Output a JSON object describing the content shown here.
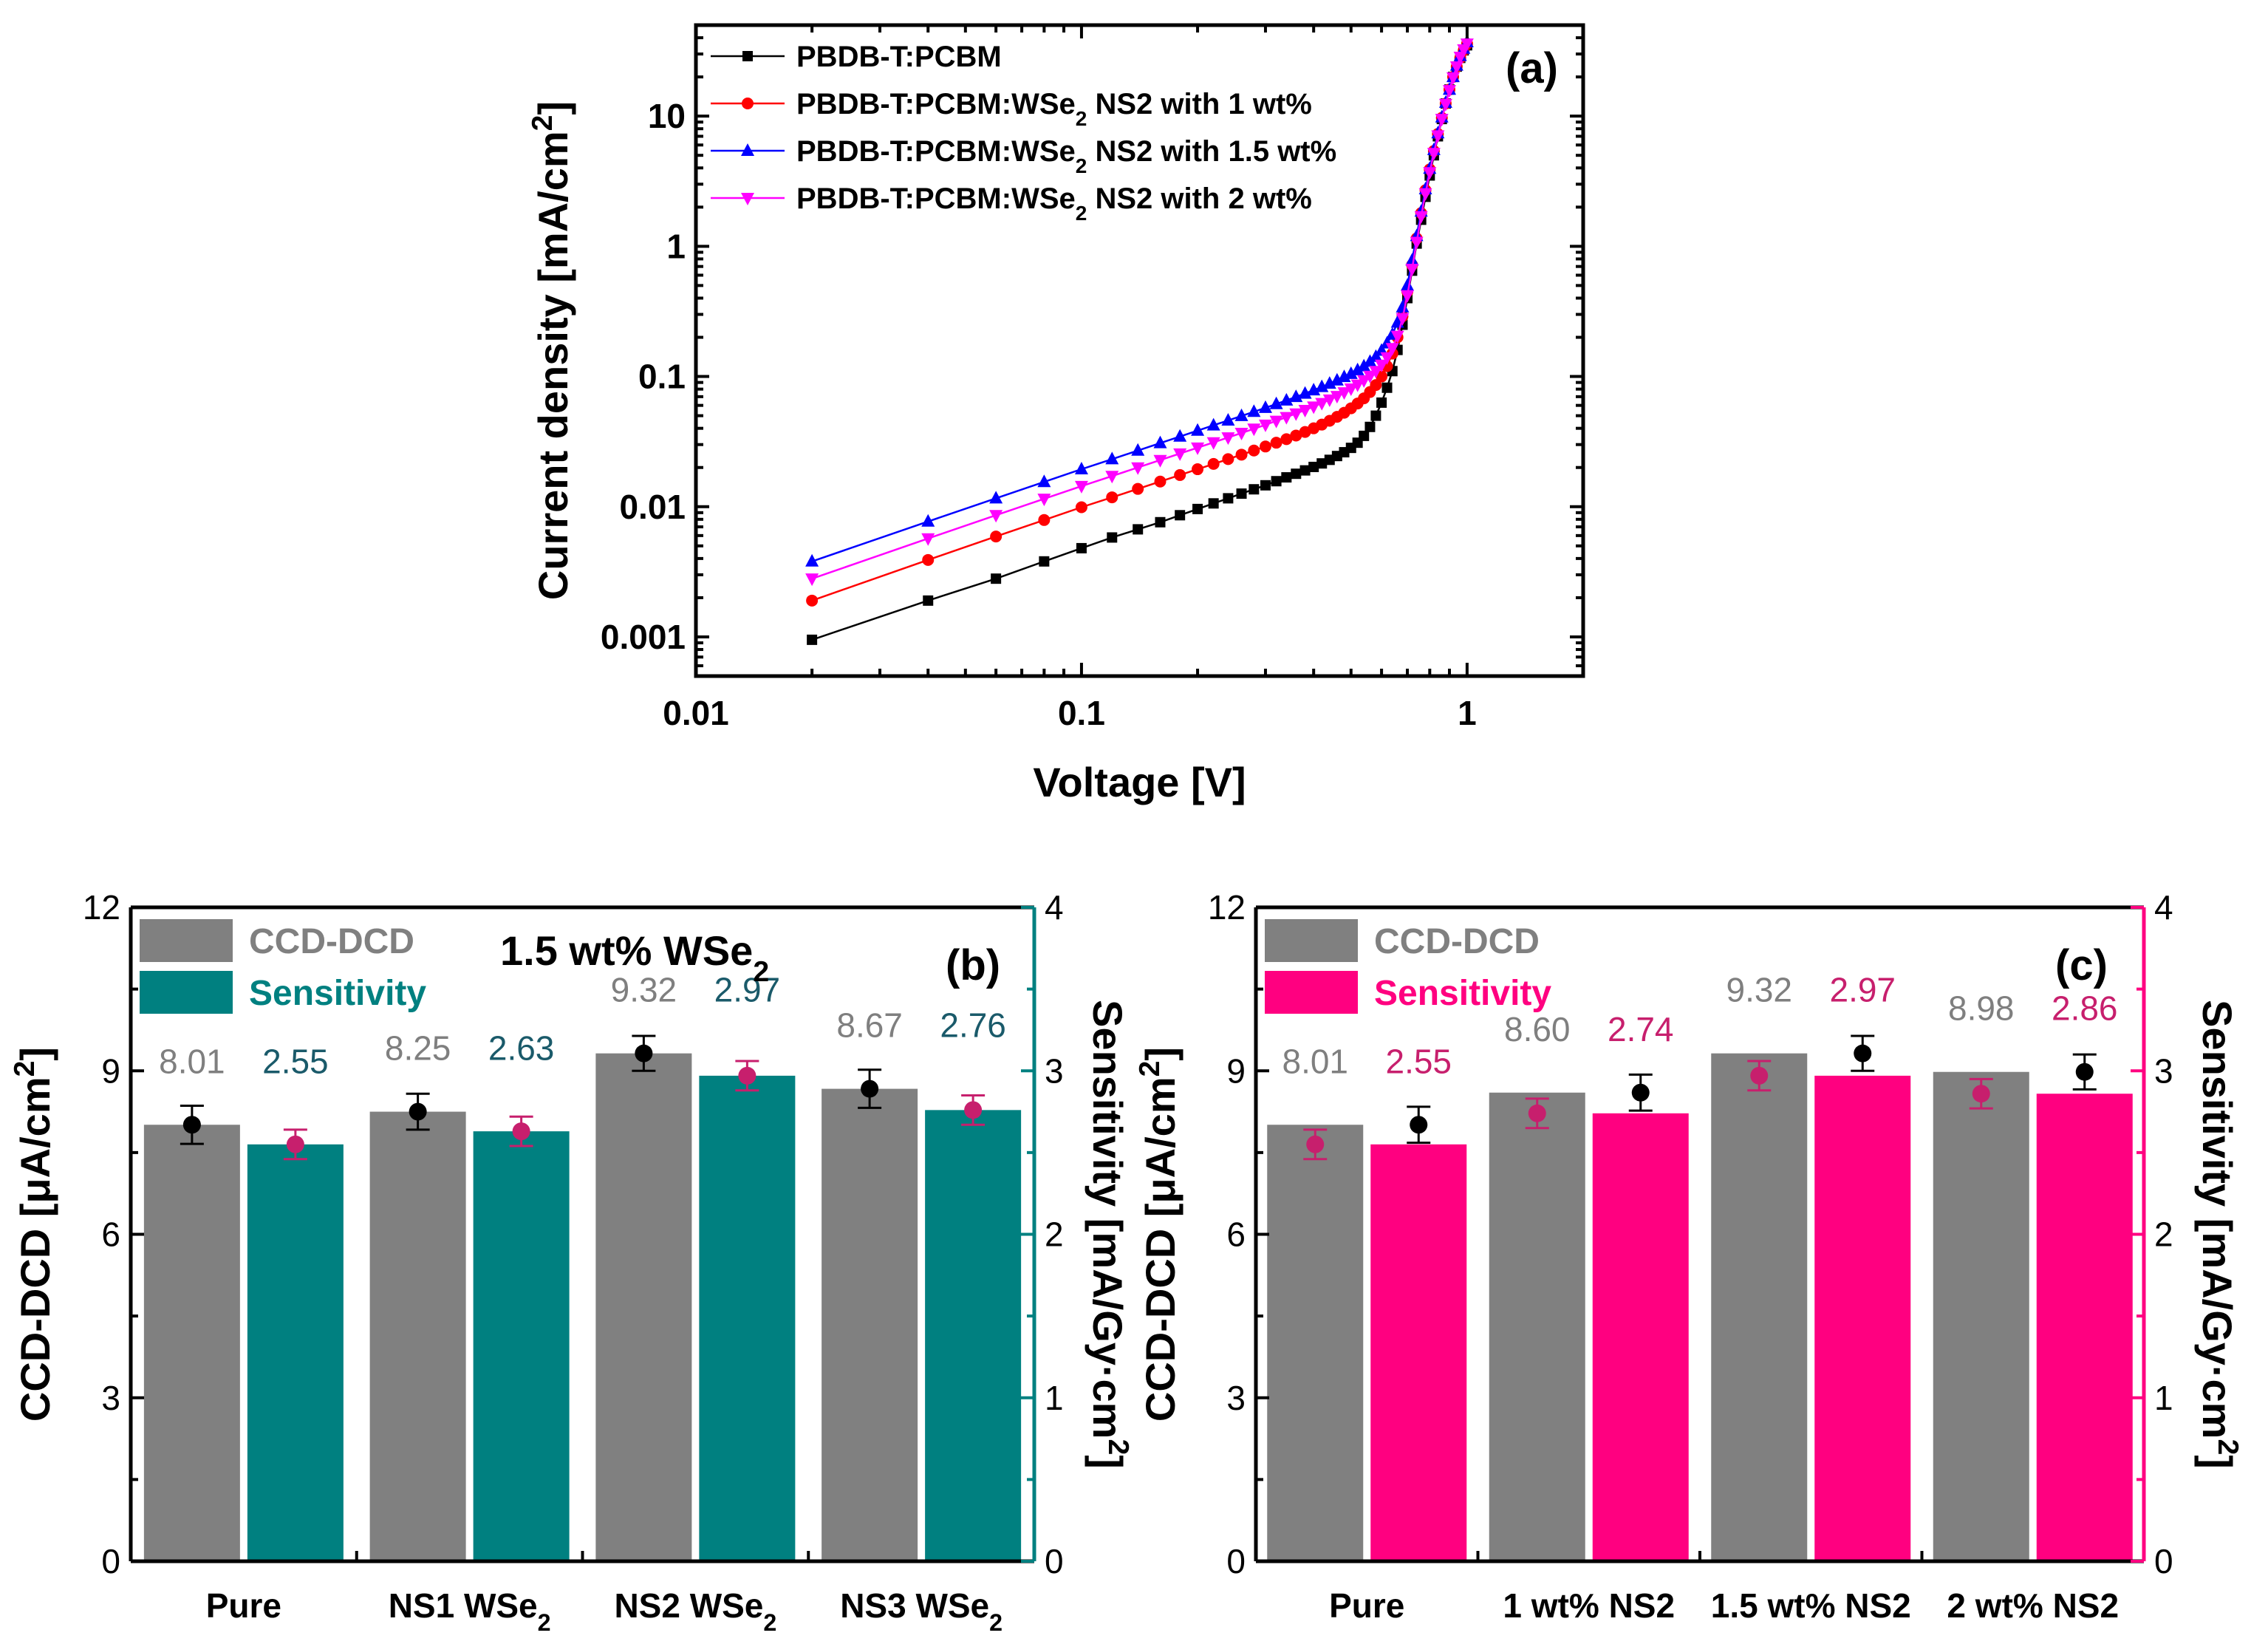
{
  "colors": {
    "black_series": "#000000",
    "red_series": "#ff0000",
    "blue_series": "#0000ff",
    "magenta_series": "#ff00ff",
    "ccd_bar": "#808080",
    "teal_bar": "#008080",
    "pink_bar": "#ff0080",
    "sens_marker": "#c71f6d",
    "value_gray": "#7f7f7f",
    "value_teal": "#1a5a6a",
    "value_pink": "#c71f6d",
    "note_purple": "#7030a0"
  },
  "chart_data": [
    {
      "panel": "(a)",
      "type": "line",
      "xscale": "log",
      "yscale": "log",
      "xlabel": "Voltage [V]",
      "ylabel": "Current density [mA/cm²]",
      "xlim": [
        0.01,
        2
      ],
      "ylim": [
        0.0005,
        50
      ],
      "xticks": [
        {
          "value": 0.01,
          "label": "0.01"
        },
        {
          "value": 0.1,
          "label": "0.1"
        },
        {
          "value": 1,
          "label": "1"
        }
      ],
      "yticks": [
        {
          "value": 0.001,
          "label": "0.001"
        },
        {
          "value": 0.01,
          "label": "0.01"
        },
        {
          "value": 0.1,
          "label": "0.1"
        },
        {
          "value": 1,
          "label": "1"
        },
        {
          "value": 10,
          "label": "10"
        }
      ],
      "x": [
        0.02,
        0.04,
        0.06,
        0.08,
        0.1,
        0.12,
        0.14,
        0.16,
        0.18,
        0.2,
        0.22,
        0.24,
        0.26,
        0.28,
        0.3,
        0.32,
        0.34,
        0.36,
        0.38,
        0.4,
        0.42,
        0.44,
        0.46,
        0.48,
        0.5,
        0.52,
        0.54,
        0.56,
        0.58,
        0.6,
        0.62,
        0.64,
        0.66,
        0.68,
        0.7,
        0.72,
        0.74,
        0.76,
        0.78,
        0.8,
        0.82,
        0.84,
        0.86,
        0.88,
        0.9,
        0.92,
        0.94,
        0.96,
        0.98,
        1.0
      ],
      "series": [
        {
          "name": "PBDB-T:PCBM",
          "marker": "square",
          "color_key": "black_series",
          "values": [
            0.00095,
            0.0019,
            0.0028,
            0.0038,
            0.0048,
            0.0058,
            0.0067,
            0.0076,
            0.0086,
            0.0096,
            0.0106,
            0.0116,
            0.0126,
            0.0136,
            0.0146,
            0.0157,
            0.0168,
            0.0179,
            0.019,
            0.0202,
            0.0215,
            0.0229,
            0.0245,
            0.0262,
            0.0283,
            0.031,
            0.035,
            0.041,
            0.05,
            0.063,
            0.082,
            0.11,
            0.16,
            0.25,
            0.4,
            0.65,
            1.05,
            1.6,
            2.4,
            3.5,
            5.0,
            7.0,
            9.5,
            12.5,
            16,
            20,
            24,
            28,
            32,
            35
          ]
        },
        {
          "name": "PBDB-T:PCBM:WSe₂ NS2 with 1 wt%",
          "marker": "circle",
          "color_key": "red_series",
          "values": [
            0.0019,
            0.0039,
            0.0059,
            0.0079,
            0.0099,
            0.0118,
            0.0137,
            0.0156,
            0.0175,
            0.0194,
            0.0213,
            0.0232,
            0.0251,
            0.027,
            0.029,
            0.031,
            0.033,
            0.0352,
            0.0375,
            0.04,
            0.0427,
            0.0457,
            0.049,
            0.0527,
            0.057,
            0.062,
            0.068,
            0.076,
            0.086,
            0.1,
            0.12,
            0.15,
            0.2,
            0.29,
            0.45,
            0.72,
            1.15,
            1.8,
            2.7,
            3.9,
            5.4,
            7.3,
            9.7,
            12.5,
            16,
            20,
            24,
            28,
            32,
            36
          ]
        },
        {
          "name": "PBDB-T:PCBM:WSe₂ NS2 with 1.5 wt%",
          "marker": "triangle-up",
          "color_key": "blue_series",
          "values": [
            0.0038,
            0.0077,
            0.0116,
            0.0155,
            0.0194,
            0.0232,
            0.027,
            0.0308,
            0.0346,
            0.0384,
            0.0422,
            0.046,
            0.0498,
            0.0536,
            0.0575,
            0.0615,
            0.0655,
            0.0697,
            0.074,
            0.0785,
            0.0832,
            0.0882,
            0.0935,
            0.0992,
            0.105,
            0.112,
            0.12,
            0.13,
            0.142,
            0.158,
            0.18,
            0.21,
            0.26,
            0.34,
            0.5,
            0.78,
            1.2,
            1.85,
            2.75,
            3.95,
            5.5,
            7.4,
            9.8,
            12.7,
            16,
            20,
            24.5,
            29,
            33,
            37
          ]
        },
        {
          "name": "PBDB-T:PCBM:WSe₂ NS2 with 2 wt%",
          "marker": "triangle-down",
          "color_key": "magenta_series",
          "values": [
            0.0028,
            0.0057,
            0.0086,
            0.0115,
            0.0144,
            0.0172,
            0.02,
            0.0228,
            0.0256,
            0.0284,
            0.0312,
            0.034,
            0.0368,
            0.0397,
            0.0426,
            0.0456,
            0.0487,
            0.0519,
            0.0552,
            0.0587,
            0.0624,
            0.0664,
            0.0707,
            0.0754,
            0.0806,
            0.0865,
            0.0933,
            0.101,
            0.11,
            0.123,
            0.14,
            0.165,
            0.205,
            0.28,
            0.42,
            0.67,
            1.08,
            1.7,
            2.55,
            3.7,
            5.2,
            7.1,
            9.5,
            12.4,
            15.8,
            19.8,
            24,
            28.5,
            32.5,
            36
          ]
        }
      ]
    },
    {
      "panel": "(b)",
      "type": "bar",
      "note": "1.5 wt% WSe₂",
      "categories": [
        "Pure",
        "NS1 WSe₂",
        "NS2 WSe₂",
        "NS3 WSe₂"
      ],
      "ylabel": "CCD-DCD [μA/cm²]",
      "y2label": "Sensitivity [mA/Gy·cm²]",
      "ylim": [
        0,
        12
      ],
      "y2lim": [
        0,
        4
      ],
      "yticks": [
        "0",
        "3",
        "6",
        "9",
        "12"
      ],
      "y2ticks": [
        "0",
        "1",
        "2",
        "3",
        "4"
      ],
      "series": [
        {
          "name": "CCD-DCD",
          "axis": "left",
          "color_key": "ccd_bar",
          "values": [
            8.01,
            8.25,
            9.32,
            8.67
          ],
          "labels": [
            "8.01",
            "8.25",
            "9.32",
            "8.67"
          ],
          "error": [
            0.35,
            0.33,
            0.32,
            0.35
          ]
        },
        {
          "name": "Sensitivity",
          "axis": "right",
          "color_key": "teal_bar",
          "values": [
            2.55,
            2.63,
            2.97,
            2.76
          ],
          "labels": [
            "2.55",
            "2.63",
            "2.97",
            "2.76"
          ],
          "error": [
            0.09,
            0.09,
            0.09,
            0.09
          ]
        }
      ]
    },
    {
      "panel": "(c)",
      "type": "bar",
      "categories": [
        "Pure",
        "1 wt% NS2",
        "1.5 wt% NS2",
        "2 wt% NS2"
      ],
      "ylabel": "CCD-DCD [μA/cm²]",
      "y2label": "Sensitivity [mA/Gy·cm²]",
      "ylim": [
        0,
        12
      ],
      "y2lim": [
        0,
        4
      ],
      "yticks": [
        "0",
        "3",
        "6",
        "9",
        "12"
      ],
      "y2ticks": [
        "0",
        "1",
        "2",
        "3",
        "4"
      ],
      "series": [
        {
          "name": "CCD-DCD",
          "axis": "left",
          "color_key": "ccd_bar",
          "values": [
            8.01,
            8.6,
            9.32,
            8.98
          ],
          "labels": [
            "8.01",
            "8.60",
            "9.32",
            "8.98"
          ],
          "error": [
            0.33,
            0.33,
            0.32,
            0.32
          ]
        },
        {
          "name": "Sensitivity",
          "axis": "right",
          "color_key": "pink_bar",
          "values": [
            2.55,
            2.74,
            2.97,
            2.86
          ],
          "labels": [
            "2.55",
            "2.74",
            "2.97",
            "2.86"
          ],
          "error": [
            0.09,
            0.09,
            0.09,
            0.09
          ]
        }
      ]
    }
  ]
}
